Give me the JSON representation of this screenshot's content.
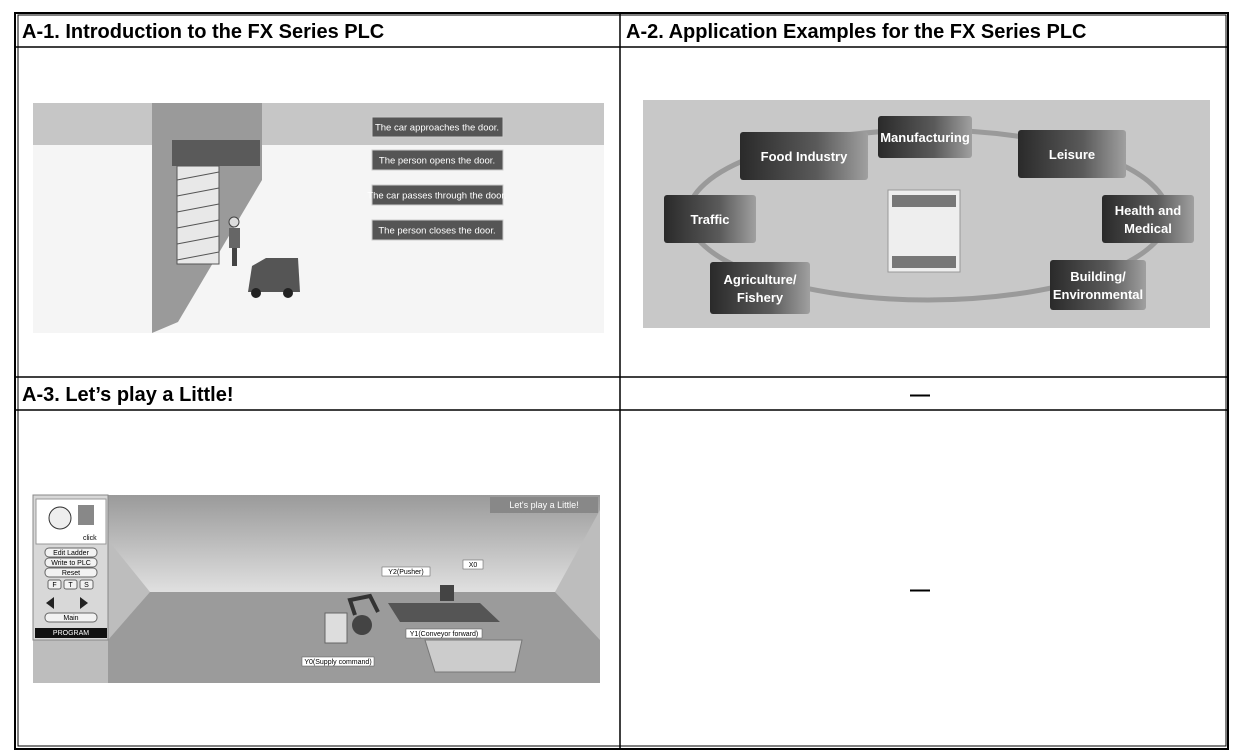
{
  "cells": [
    {
      "title": "A-1. Introduction to the FX Series PLC",
      "image": {
        "steps": [
          "The car approaches the door.",
          "The person opens the door.",
          "The car passes through the door.",
          "The person closes the door."
        ]
      }
    },
    {
      "title": "A-2. Application Examples for the FX Series PLC",
      "image": {
        "labels": [
          {
            "lines": [
              "Food Industry"
            ]
          },
          {
            "lines": [
              "Manufacturing"
            ]
          },
          {
            "lines": [
              "Leisure"
            ]
          },
          {
            "lines": [
              "Traffic"
            ]
          },
          {
            "lines": [
              "Health and",
              "Medical"
            ]
          },
          {
            "lines": [
              "Agriculture/",
              "Fishery"
            ]
          },
          {
            "lines": [
              "Building/",
              "Environmental"
            ]
          }
        ]
      }
    },
    {
      "title": "A-3. Let’s play a Little!",
      "image": {
        "banner": "Let's play a Little!",
        "click": "click",
        "buttons": [
          "Edit Ladder",
          "Write to PLC",
          "Reset",
          "Main"
        ],
        "speed": [
          "F",
          "T",
          "S"
        ],
        "mode": "PROGRAM",
        "labels": [
          "Y2(Pusher)",
          "X0",
          "Y1(Conveyor forward)",
          "Y0(Supply command)"
        ]
      }
    },
    {
      "title": "—",
      "body": "—"
    }
  ]
}
